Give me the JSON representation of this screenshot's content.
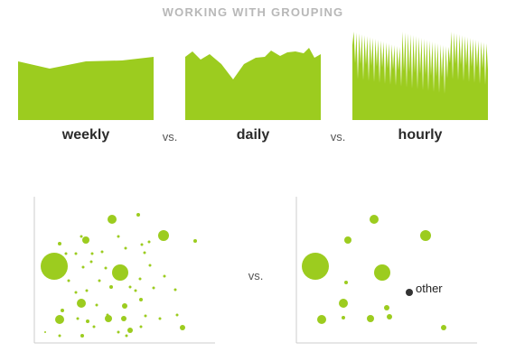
{
  "header": {
    "title": "WORKING WITH GROUPING"
  },
  "colors": {
    "accent": "#9ccc1f",
    "dark": "#333333",
    "axis": "#cccccc"
  },
  "labels": {
    "weekly": "weekly",
    "daily": "daily",
    "hourly": "hourly",
    "vs_1": "vs.",
    "vs_2": "vs.",
    "vs_3": "vs."
  },
  "scatter_right": {
    "other_label": "other"
  }
}
